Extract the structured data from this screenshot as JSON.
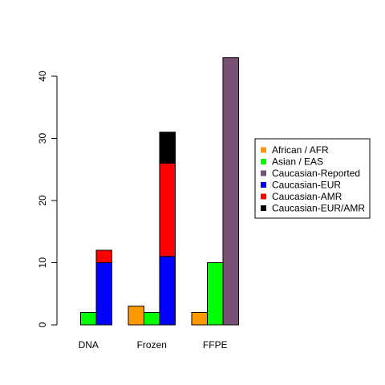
{
  "chart_data": {
    "type": "bar",
    "groups": [
      "DNA",
      "Frozen",
      "FFPE"
    ],
    "ylim": [
      0,
      44
    ],
    "yticks": [
      0,
      10,
      20,
      30,
      40
    ],
    "bars": [
      {
        "group": "DNA",
        "stack": [
          {
            "series": "African / AFR",
            "value": 0
          }
        ]
      },
      {
        "group": "DNA",
        "stack": [
          {
            "series": "Asian / EAS",
            "value": 2
          }
        ]
      },
      {
        "group": "DNA",
        "stack": [
          {
            "series": "Caucasian-EUR",
            "value": 10
          },
          {
            "series": "Caucasian-AMR",
            "value": 2
          }
        ]
      },
      {
        "group": "Frozen",
        "stack": [
          {
            "series": "African / AFR",
            "value": 3
          }
        ]
      },
      {
        "group": "Frozen",
        "stack": [
          {
            "series": "Asian / EAS",
            "value": 2
          }
        ]
      },
      {
        "group": "Frozen",
        "stack": [
          {
            "series": "Caucasian-EUR",
            "value": 11
          },
          {
            "series": "Caucasian-AMR",
            "value": 15
          },
          {
            "series": "Caucasian-EUR/AMR",
            "value": 5
          }
        ]
      },
      {
        "group": "FFPE",
        "stack": [
          {
            "series": "African / AFR",
            "value": 2
          }
        ]
      },
      {
        "group": "FFPE",
        "stack": [
          {
            "series": "Asian / EAS",
            "value": 10
          }
        ]
      },
      {
        "group": "FFPE",
        "stack": [
          {
            "series": "Caucasian-Reported",
            "value": 43
          }
        ]
      }
    ],
    "legend": {
      "position": "right",
      "entries": [
        {
          "label": "African / AFR",
          "color": "#ff9900"
        },
        {
          "label": "Asian / EAS",
          "color": "#00ff00"
        },
        {
          "label": "Caucasian-Reported",
          "color": "#7a5077"
        },
        {
          "label": "Caucasian-EUR",
          "color": "#0000ff"
        },
        {
          "label": "Caucasian-AMR",
          "color": "#ff0000"
        },
        {
          "label": "Caucasian-EUR/AMR",
          "color": "#000000"
        }
      ]
    },
    "grid": false
  }
}
